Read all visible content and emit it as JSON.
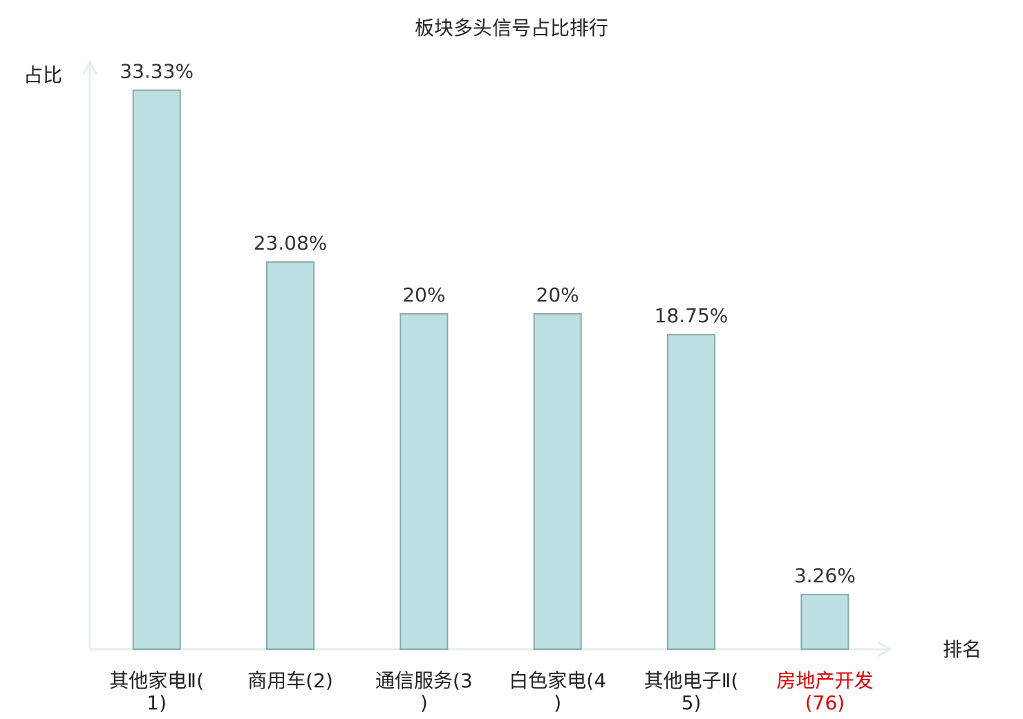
{
  "chart_data": {
    "type": "bar",
    "title": "板块多头信号占比排行",
    "y_label": "占比",
    "x_label": "排名",
    "categories": [
      "其他家电Ⅱ(1)",
      "商用车(2)",
      "通信服务(3)",
      "白色家电(4)",
      "其他电子Ⅱ(5)",
      "房地产开发(76)"
    ],
    "values": [
      33.33,
      23.08,
      20,
      20,
      18.75,
      3.26
    ],
    "value_labels": [
      "33.33%",
      "23.08%",
      "20%",
      "20%",
      "18.75%",
      "3.26%"
    ],
    "color": "#bde0e3",
    "edge_color": "#8aa9ab",
    "category_label_colors": [
      "#222222",
      "#222222",
      "#222222",
      "#222222",
      "#222222",
      "#e00000"
    ],
    "ylim": [
      0,
      35
    ]
  }
}
